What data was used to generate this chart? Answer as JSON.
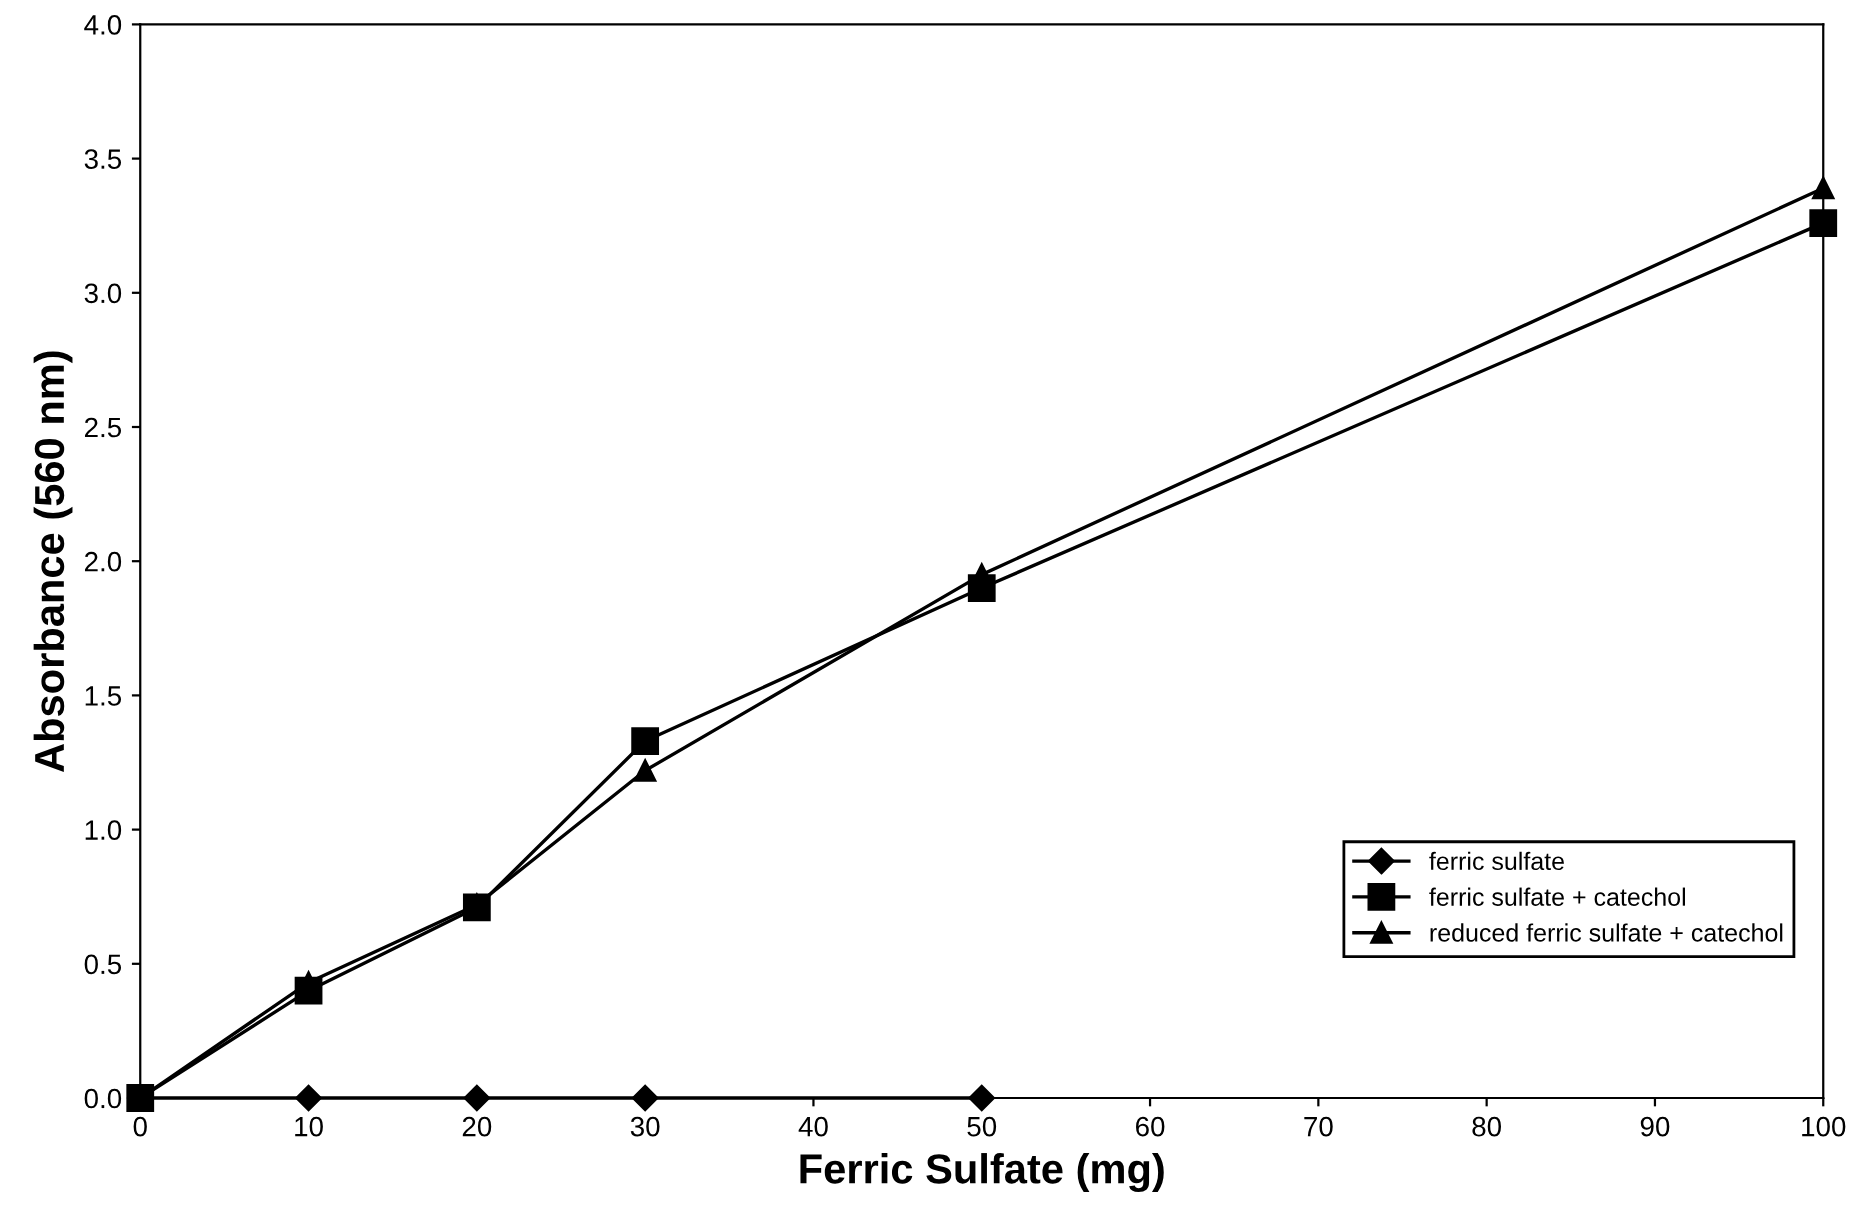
{
  "chart_data": {
    "type": "line",
    "xlabel": "Ferric Sulfate (mg)",
    "ylabel": "Absorbance (560 nm)",
    "xlim": [
      0,
      100
    ],
    "xticks": [
      0,
      10,
      20,
      30,
      40,
      50,
      60,
      70,
      80,
      90,
      100
    ],
    "ylim": [
      0,
      4
    ],
    "yticks": [
      {
        "value": 0,
        "label": "0.0"
      },
      {
        "value": 0.5,
        "label": "0.5"
      },
      {
        "value": 1,
        "label": "1.0"
      },
      {
        "value": 1.5,
        "label": "1.5"
      },
      {
        "value": 2,
        "label": "2.0"
      },
      {
        "value": 2.5,
        "label": "2.5"
      },
      {
        "value": 3,
        "label": "3.0"
      },
      {
        "value": 3.5,
        "label": "3.5"
      },
      {
        "value": 4,
        "label": "4.0"
      }
    ],
    "grid": false,
    "legend": "bottom right",
    "line_style": "solid",
    "series": [
      {
        "name": "ferric sulfate",
        "color": "#000000",
        "marker": "diamond",
        "x": [
          0,
          10,
          20,
          30,
          50
        ],
        "values": [
          0,
          0,
          0,
          0,
          0
        ]
      },
      {
        "name": "ferric sulfate + catechol",
        "color": "#000000",
        "marker": "square",
        "x": [
          0,
          10,
          20,
          30,
          50,
          100
        ],
        "values": [
          0,
          0.4,
          0.71,
          1.33,
          1.9,
          3.26
        ]
      },
      {
        "name": "reduced ferric sulfate + catechol",
        "color": "#000000",
        "marker": "triangle",
        "x": [
          0,
          10,
          20,
          30,
          50,
          100
        ],
        "values": [
          0,
          0.43,
          0.72,
          1.22,
          1.95,
          3.39
        ]
      }
    ]
  }
}
